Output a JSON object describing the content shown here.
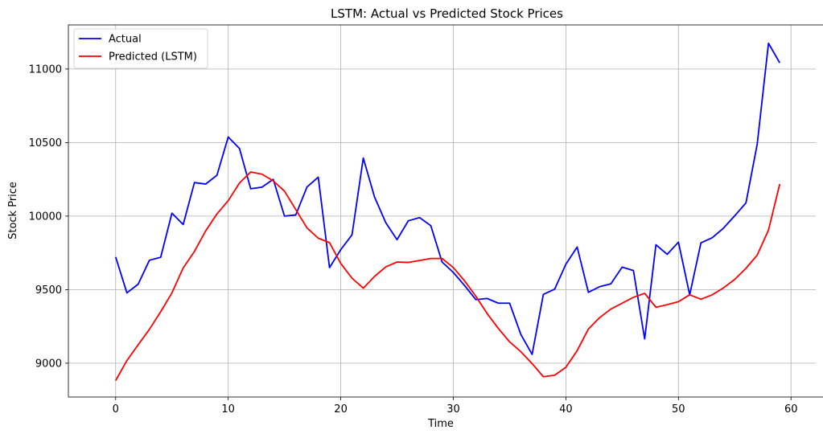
{
  "chart_data": {
    "type": "line",
    "title": "LSTM: Actual vs Predicted Stock Prices",
    "xlabel": "Time",
    "ylabel": "Stock Price",
    "xlim": [
      -4.2,
      62.2
    ],
    "ylim": [
      8770,
      11300
    ],
    "xticks": [
      0,
      10,
      20,
      30,
      40,
      50,
      60
    ],
    "yticks": [
      9000,
      9500,
      10000,
      10500,
      11000
    ],
    "grid": true,
    "legend_position": "upper-left",
    "x": [
      0,
      1,
      2,
      3,
      4,
      5,
      6,
      7,
      8,
      9,
      10,
      11,
      12,
      13,
      14,
      15,
      16,
      17,
      18,
      19,
      20,
      21,
      22,
      23,
      24,
      25,
      26,
      27,
      28,
      29,
      30,
      31,
      32,
      33,
      34,
      35,
      36,
      37,
      38,
      39,
      40,
      41,
      42,
      43,
      44,
      45,
      46,
      47,
      48,
      49,
      50,
      51,
      52,
      53,
      54,
      55,
      56,
      57,
      58,
      59
    ],
    "series": [
      {
        "name": "Actual",
        "color": "#0000ff",
        "values": [
          9722,
          9478,
          9537,
          9700,
          9720,
          10020,
          9943,
          10228,
          10218,
          10278,
          10538,
          10460,
          10186,
          10197,
          10250,
          10000,
          10008,
          10198,
          10265,
          9650,
          9772,
          9873,
          10395,
          10130,
          9955,
          9840,
          9968,
          9990,
          9935,
          9688,
          9617,
          9528,
          9432,
          9440,
          9408,
          9408,
          9195,
          9060,
          9468,
          9503,
          9673,
          9790,
          9482,
          9520,
          9540,
          9653,
          9630,
          9165,
          9805,
          9740,
          9823,
          9465,
          9818,
          9853,
          9918,
          10002,
          10090,
          10490,
          11175,
          11042
        ]
      },
      {
        "name": "Predicted (LSTM)",
        "color": "#ff0000",
        "values": [
          8882,
          9018,
          9125,
          9230,
          9350,
          9478,
          9648,
          9760,
          9900,
          10015,
          10105,
          10225,
          10300,
          10285,
          10240,
          10170,
          10045,
          9920,
          9850,
          9820,
          9678,
          9578,
          9510,
          9590,
          9655,
          9688,
          9685,
          9698,
          9712,
          9712,
          9650,
          9560,
          9455,
          9338,
          9236,
          9145,
          9078,
          8997,
          8908,
          8918,
          8972,
          9085,
          9232,
          9310,
          9368,
          9408,
          9448,
          9475,
          9380,
          9398,
          9418,
          9465,
          9435,
          9465,
          9512,
          9570,
          9645,
          9735,
          9905,
          10218
        ]
      }
    ]
  }
}
